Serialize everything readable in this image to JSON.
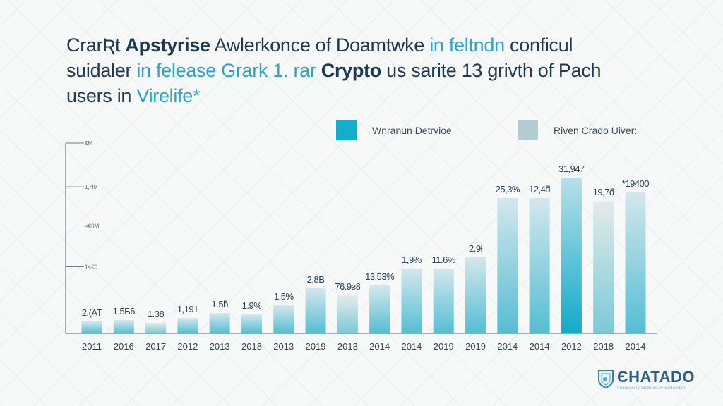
{
  "title": {
    "line1": [
      {
        "text": "CrarƦt ",
        "style": "n"
      },
      {
        "text": "Apstyrise",
        "style": "b"
      },
      {
        "text": " Awlerkonce of Doamtwke ",
        "style": "n"
      },
      {
        "text": "in feltndn",
        "style": "hl"
      },
      {
        "text": " conficul",
        "style": "n"
      }
    ],
    "line2": [
      {
        "text": "suidaler ",
        "style": "n"
      },
      {
        "text": "in  felease Grark 1. rar ",
        "style": "hl"
      },
      {
        "text": "Crypto",
        "style": "b"
      },
      {
        "text": " us sarite 13 grivth of Pach",
        "style": "n"
      }
    ],
    "line3": [
      {
        "text": "users in ",
        "style": "n"
      },
      {
        "text": "Virelife*",
        "style": "hl"
      }
    ]
  },
  "legend": [
    {
      "label": "Wnranun Detrvioe",
      "color": "#14aecb"
    },
    {
      "label": "Riven Crado Uiver:",
      "color": "#b3ccd2"
    }
  ],
  "logo": {
    "name": "ЄHATADO",
    "tagline": "Imansurary Wothoustiv Sodecrtian"
  },
  "chart_data": {
    "type": "bar",
    "title": "",
    "xlabel": "",
    "ylabel": "",
    "ylim": [
      0,
      100
    ],
    "grid": false,
    "legend_position": "top-right",
    "y_ticks": [
      {
        "value": 100,
        "label": "€M"
      },
      {
        "value": 77,
        "label": "1,H0"
      },
      {
        "value": 56.5,
        "label": "<€0M"
      },
      {
        "value": 35,
        "label": "1<€0"
      }
    ],
    "categories": [
      "2011",
      "2016",
      "2017",
      "2012",
      "2013",
      "2018",
      "2013",
      "2019",
      "2013",
      "2014",
      "2014",
      "2019",
      "2019",
      "2014",
      "2014",
      "2012",
      "2018",
      "2014"
    ],
    "values": [
      6.3,
      7.0,
      5.6,
      8.1,
      10.7,
      10.0,
      14.8,
      23.7,
      20.0,
      25.2,
      34.1,
      34.1,
      40.0,
      71.1,
      71.1,
      81.9,
      69.6,
      74.1
    ],
    "data_labels": [
      "2.(AT",
      "1.5Б6",
      "1.38",
      "1,191",
      "1.5ƃ",
      "1.9%",
      "1.5%",
      "2,8Ƀ",
      "76.9ƨ8",
      "13,53%",
      "1,9%",
      "11.6%",
      "2.9ƚ",
      "25,3%",
      "12,4ƌ",
      "31,947",
      "19,7ƌ",
      "*19400"
    ],
    "series_colors": {
      "top": "#d6e8ec",
      "bottom": "#5ec0d6",
      "accent_bottom": "#1aafca"
    }
  }
}
